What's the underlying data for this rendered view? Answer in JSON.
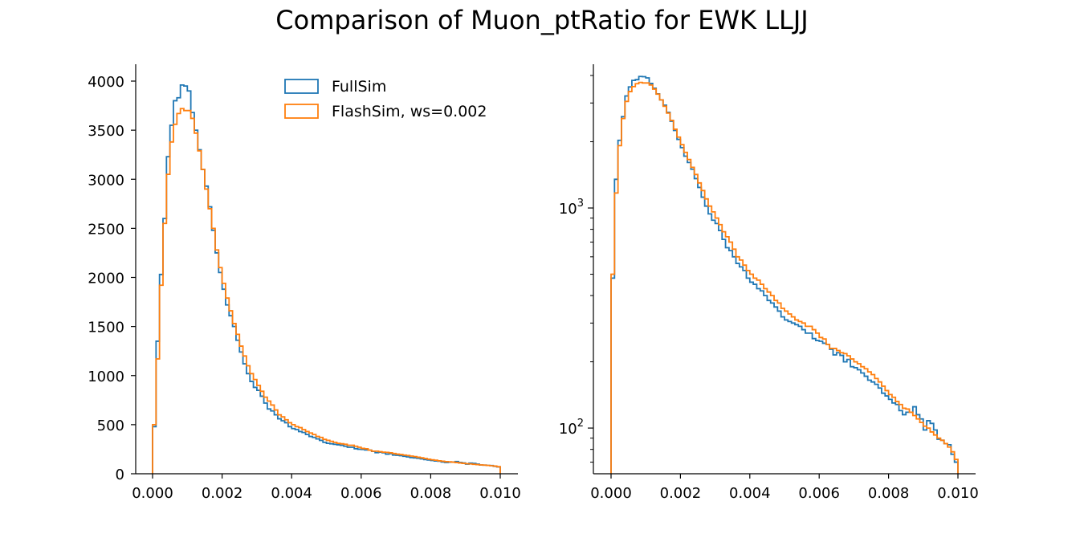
{
  "title": "Comparison of Muon_ptRatio for EWK LLJJ",
  "colors": {
    "fullsim": "#1f77b4",
    "flashsim": "#ff7f0e",
    "axis": "#000000"
  },
  "chart_data": [
    {
      "type": "histogram-step",
      "yscale": "linear",
      "xlim": [
        0.0,
        0.0105
      ],
      "ylim": [
        0,
        4150
      ],
      "xticks": [
        "0.000",
        "0.002",
        "0.004",
        "0.006",
        "0.008",
        "0.010"
      ],
      "yticks": [
        "0",
        "500",
        "1000",
        "1500",
        "2000",
        "2500",
        "3000",
        "3500",
        "4000"
      ],
      "legend": {
        "position": "top-center",
        "entries": [
          "FullSim",
          "FlashSim, ws=0.002"
        ]
      }
    },
    {
      "type": "histogram-step",
      "yscale": "log",
      "xlim": [
        0.0,
        0.0105
      ],
      "ylim": [
        62,
        4500
      ],
      "xticks": [
        "0.000",
        "0.002",
        "0.004",
        "0.006",
        "0.008",
        "0.010"
      ],
      "yticks_major": [
        {
          "value": 100,
          "base": "10",
          "exp": "2"
        },
        {
          "value": 1000,
          "base": "10",
          "exp": "3"
        }
      ]
    }
  ],
  "histograms": {
    "bins": {
      "start": 0.0,
      "end": 0.01,
      "count": 100
    },
    "series": [
      {
        "name": "FullSim",
        "values": [
          480,
          1350,
          2030,
          2600,
          3230,
          3550,
          3800,
          3830,
          3960,
          3950,
          3900,
          3680,
          3500,
          3300,
          3100,
          2930,
          2720,
          2480,
          2250,
          2050,
          1880,
          1720,
          1610,
          1500,
          1360,
          1240,
          1120,
          1020,
          940,
          880,
          850,
          790,
          720,
          660,
          640,
          600,
          560,
          540,
          520,
          480,
          460,
          450,
          430,
          420,
          400,
          380,
          370,
          355,
          340,
          320,
          310,
          305,
          300,
          295,
          290,
          280,
          270,
          270,
          255,
          250,
          248,
          243,
          240,
          228,
          215,
          220,
          214,
          200,
          205,
          190,
          188,
          184,
          178,
          172,
          165,
          162,
          158,
          152,
          144,
          140,
          135,
          130,
          128,
          120,
          115,
          118,
          118,
          125,
          115,
          110,
          98,
          108,
          105,
          98,
          89,
          88,
          85,
          84,
          76,
          70
        ]
      },
      {
        "name": "FlashSim, ws=0.002",
        "values": [
          500,
          1170,
          1920,
          2550,
          3050,
          3380,
          3560,
          3670,
          3720,
          3700,
          3700,
          3620,
          3470,
          3290,
          3100,
          2900,
          2700,
          2500,
          2280,
          2100,
          1940,
          1790,
          1660,
          1530,
          1420,
          1300,
          1200,
          1100,
          1020,
          960,
          900,
          840,
          780,
          740,
          700,
          650,
          600,
          580,
          550,
          520,
          500,
          480,
          470,
          450,
          430,
          415,
          400,
          380,
          370,
          350,
          340,
          330,
          320,
          310,
          305,
          300,
          290,
          290,
          280,
          270,
          258,
          254,
          240,
          230,
          230,
          225,
          220,
          218,
          213,
          206,
          200,
          196,
          190,
          186,
          180,
          175,
          168,
          162,
          155,
          148,
          142,
          138,
          132,
          128,
          123,
          122,
          118,
          114,
          110,
          106,
          102,
          100,
          96,
          93,
          90,
          88,
          85,
          82,
          78,
          72
        ]
      }
    ]
  }
}
